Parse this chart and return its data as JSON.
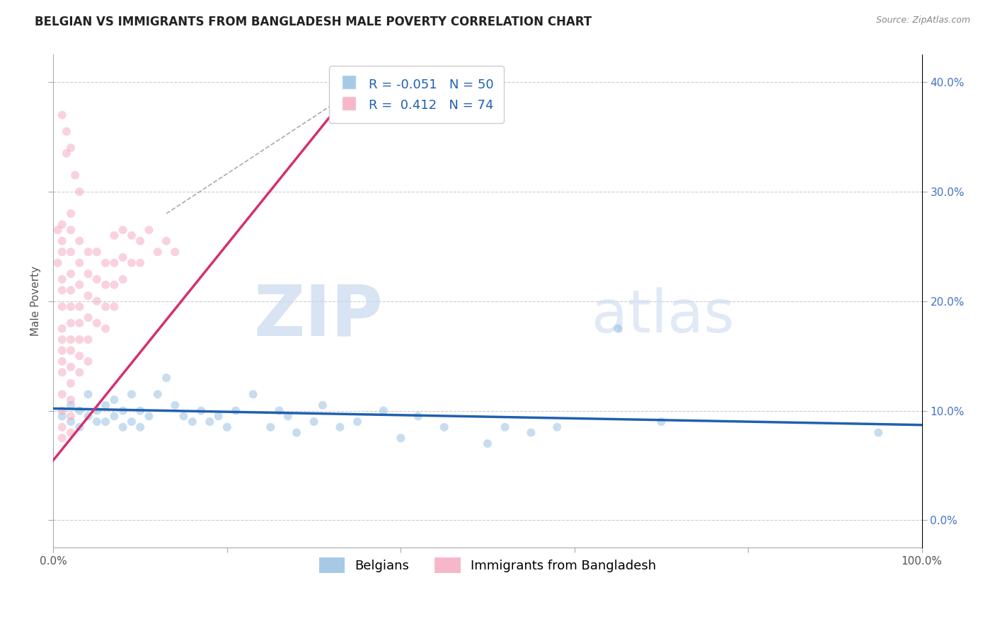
{
  "title": "BELGIAN VS IMMIGRANTS FROM BANGLADESH MALE POVERTY CORRELATION CHART",
  "source": "Source: ZipAtlas.com",
  "xlabel": "",
  "ylabel": "Male Poverty",
  "watermark_zip": "ZIP",
  "watermark_atlas": "atlas",
  "legend_blue_r": "R = -0.051",
  "legend_blue_n": "N = 50",
  "legend_pink_r": "R =  0.412",
  "legend_pink_n": "N = 74",
  "legend_label_blue": "Belgians",
  "legend_label_pink": "Immigrants from Bangladesh",
  "xlim": [
    0,
    1.0
  ],
  "ylim": [
    -0.025,
    0.425
  ],
  "xticks": [
    0.0,
    0.2,
    0.4,
    0.6,
    0.8,
    1.0
  ],
  "xtick_labels": [
    "0.0%",
    "",
    "",
    "",
    "",
    "100.0%"
  ],
  "yticks": [
    0.0,
    0.1,
    0.2,
    0.3,
    0.4
  ],
  "ytick_labels_right": [
    "0.0%",
    "10.0%",
    "20.0%",
    "30.0%",
    "40.0%"
  ],
  "blue_scatter": [
    [
      0.01,
      0.095
    ],
    [
      0.02,
      0.105
    ],
    [
      0.02,
      0.09
    ],
    [
      0.03,
      0.1
    ],
    [
      0.03,
      0.085
    ],
    [
      0.04,
      0.115
    ],
    [
      0.04,
      0.095
    ],
    [
      0.05,
      0.1
    ],
    [
      0.05,
      0.09
    ],
    [
      0.06,
      0.105
    ],
    [
      0.06,
      0.09
    ],
    [
      0.07,
      0.11
    ],
    [
      0.07,
      0.095
    ],
    [
      0.08,
      0.1
    ],
    [
      0.08,
      0.085
    ],
    [
      0.09,
      0.115
    ],
    [
      0.09,
      0.09
    ],
    [
      0.1,
      0.1
    ],
    [
      0.1,
      0.085
    ],
    [
      0.11,
      0.095
    ],
    [
      0.12,
      0.115
    ],
    [
      0.13,
      0.13
    ],
    [
      0.14,
      0.105
    ],
    [
      0.15,
      0.095
    ],
    [
      0.16,
      0.09
    ],
    [
      0.17,
      0.1
    ],
    [
      0.18,
      0.09
    ],
    [
      0.19,
      0.095
    ],
    [
      0.2,
      0.085
    ],
    [
      0.21,
      0.1
    ],
    [
      0.23,
      0.115
    ],
    [
      0.25,
      0.085
    ],
    [
      0.26,
      0.1
    ],
    [
      0.27,
      0.095
    ],
    [
      0.28,
      0.08
    ],
    [
      0.3,
      0.09
    ],
    [
      0.31,
      0.105
    ],
    [
      0.33,
      0.085
    ],
    [
      0.35,
      0.09
    ],
    [
      0.38,
      0.1
    ],
    [
      0.4,
      0.075
    ],
    [
      0.42,
      0.095
    ],
    [
      0.45,
      0.085
    ],
    [
      0.5,
      0.07
    ],
    [
      0.52,
      0.085
    ],
    [
      0.55,
      0.08
    ],
    [
      0.58,
      0.085
    ],
    [
      0.65,
      0.175
    ],
    [
      0.7,
      0.09
    ],
    [
      0.95,
      0.08
    ]
  ],
  "pink_scatter": [
    [
      0.005,
      0.265
    ],
    [
      0.005,
      0.235
    ],
    [
      0.01,
      0.27
    ],
    [
      0.01,
      0.255
    ],
    [
      0.01,
      0.245
    ],
    [
      0.01,
      0.22
    ],
    [
      0.01,
      0.21
    ],
    [
      0.01,
      0.195
    ],
    [
      0.01,
      0.175
    ],
    [
      0.01,
      0.165
    ],
    [
      0.01,
      0.155
    ],
    [
      0.01,
      0.145
    ],
    [
      0.01,
      0.135
    ],
    [
      0.01,
      0.115
    ],
    [
      0.01,
      0.1
    ],
    [
      0.01,
      0.085
    ],
    [
      0.01,
      0.075
    ],
    [
      0.02,
      0.28
    ],
    [
      0.02,
      0.265
    ],
    [
      0.02,
      0.245
    ],
    [
      0.02,
      0.225
    ],
    [
      0.02,
      0.21
    ],
    [
      0.02,
      0.195
    ],
    [
      0.02,
      0.18
    ],
    [
      0.02,
      0.165
    ],
    [
      0.02,
      0.155
    ],
    [
      0.02,
      0.14
    ],
    [
      0.02,
      0.125
    ],
    [
      0.02,
      0.11
    ],
    [
      0.02,
      0.095
    ],
    [
      0.02,
      0.08
    ],
    [
      0.03,
      0.255
    ],
    [
      0.03,
      0.235
    ],
    [
      0.03,
      0.215
    ],
    [
      0.03,
      0.195
    ],
    [
      0.03,
      0.18
    ],
    [
      0.03,
      0.165
    ],
    [
      0.03,
      0.15
    ],
    [
      0.03,
      0.135
    ],
    [
      0.04,
      0.245
    ],
    [
      0.04,
      0.225
    ],
    [
      0.04,
      0.205
    ],
    [
      0.04,
      0.185
    ],
    [
      0.04,
      0.165
    ],
    [
      0.04,
      0.145
    ],
    [
      0.05,
      0.245
    ],
    [
      0.05,
      0.22
    ],
    [
      0.05,
      0.2
    ],
    [
      0.05,
      0.18
    ],
    [
      0.06,
      0.235
    ],
    [
      0.06,
      0.215
    ],
    [
      0.06,
      0.195
    ],
    [
      0.06,
      0.175
    ],
    [
      0.07,
      0.26
    ],
    [
      0.07,
      0.235
    ],
    [
      0.07,
      0.215
    ],
    [
      0.07,
      0.195
    ],
    [
      0.08,
      0.265
    ],
    [
      0.08,
      0.24
    ],
    [
      0.08,
      0.22
    ],
    [
      0.09,
      0.26
    ],
    [
      0.09,
      0.235
    ],
    [
      0.1,
      0.255
    ],
    [
      0.1,
      0.235
    ],
    [
      0.11,
      0.265
    ],
    [
      0.12,
      0.245
    ],
    [
      0.13,
      0.255
    ],
    [
      0.14,
      0.245
    ],
    [
      0.015,
      0.355
    ],
    [
      0.015,
      0.335
    ],
    [
      0.01,
      0.37
    ],
    [
      0.02,
      0.34
    ],
    [
      0.025,
      0.315
    ],
    [
      0.03,
      0.3
    ]
  ],
  "blue_line": [
    [
      0.0,
      0.102
    ],
    [
      1.0,
      0.087
    ]
  ],
  "pink_line": [
    [
      -0.005,
      0.05
    ],
    [
      0.32,
      0.37
    ]
  ],
  "background_color": "#ffffff",
  "grid_color": "#cccccc",
  "scatter_alpha": 0.5,
  "scatter_size": 75,
  "blue_color": "#90bde0",
  "pink_color": "#f4a7bc",
  "blue_line_color": "#2060b0",
  "pink_line_color": "#d43070",
  "title_fontsize": 12,
  "axis_fontsize": 11,
  "tick_fontsize": 11,
  "legend_fontsize": 13
}
